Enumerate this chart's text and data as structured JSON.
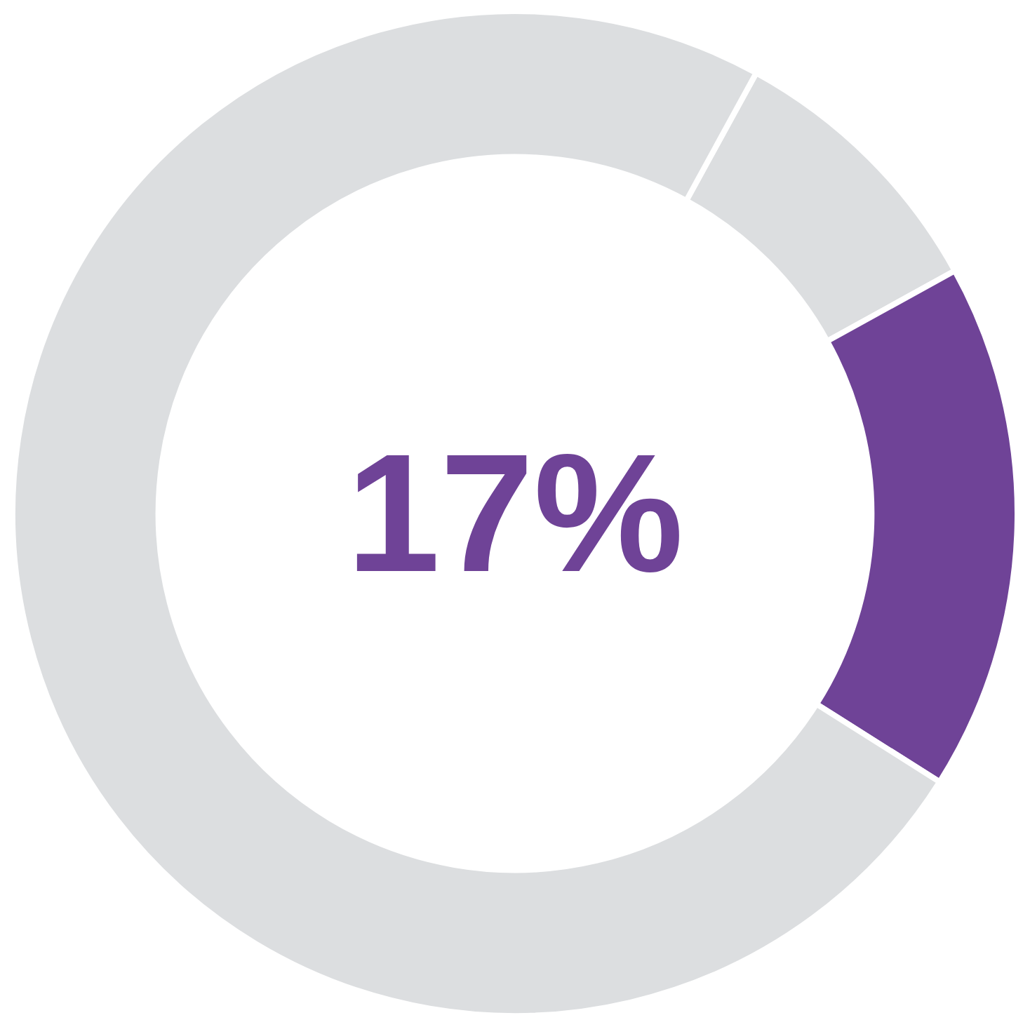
{
  "chart_data": {
    "type": "donut",
    "categories": [
      null,
      null,
      null
    ],
    "values": [
      9,
      17,
      74
    ],
    "colors": [
      "#dcdee0",
      "#6f4397",
      "#dcdee0"
    ],
    "annotations": [
      "17%"
    ]
  }
}
